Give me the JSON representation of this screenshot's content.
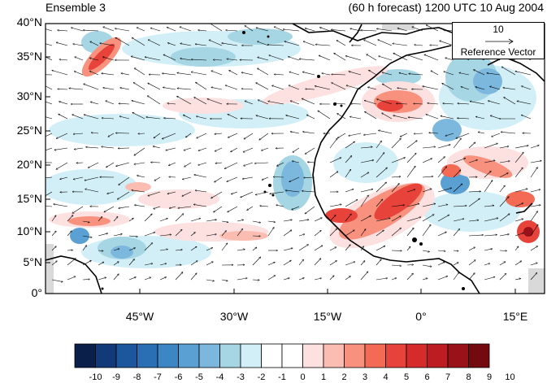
{
  "title_left": "Ensemble 3",
  "title_right": "(60 h forecast) 1200 UTC 10 Aug 2004",
  "lat_labels": [
    "40°N",
    "35°N",
    "30°N",
    "25°N",
    "20°N",
    "15°N",
    "10°N",
    "5°N",
    "0°"
  ],
  "lon_labels": [
    "45°W",
    "30°W",
    "15°W",
    "0°",
    "15°E"
  ],
  "reference_vector": {
    "magnitude": "10",
    "label": "Reference Vector"
  },
  "colorbar": {
    "labels": [
      "-10",
      "-9",
      "-8",
      "-7",
      "-6",
      "-5",
      "-4",
      "-3",
      "-2",
      "-1",
      "0",
      "1",
      "2",
      "3",
      "4",
      "5",
      "6",
      "7",
      "8",
      "9",
      "10"
    ],
    "colors": [
      "#0a1f4a",
      "#123a78",
      "#1c569c",
      "#2a6fb4",
      "#3c86c4",
      "#5ba0d2",
      "#7cb8de",
      "#a6d6e4",
      "#d2eff7",
      "#ffffff",
      "#ffffff",
      "#fde0e0",
      "#fbbcb2",
      "#f8927e",
      "#f36a55",
      "#e8433a",
      "#d62b2b",
      "#bb1d22",
      "#991219",
      "#730a10"
    ]
  },
  "colors": {
    "land_boundary": "#000000",
    "missing": "#d9d9d9"
  }
}
